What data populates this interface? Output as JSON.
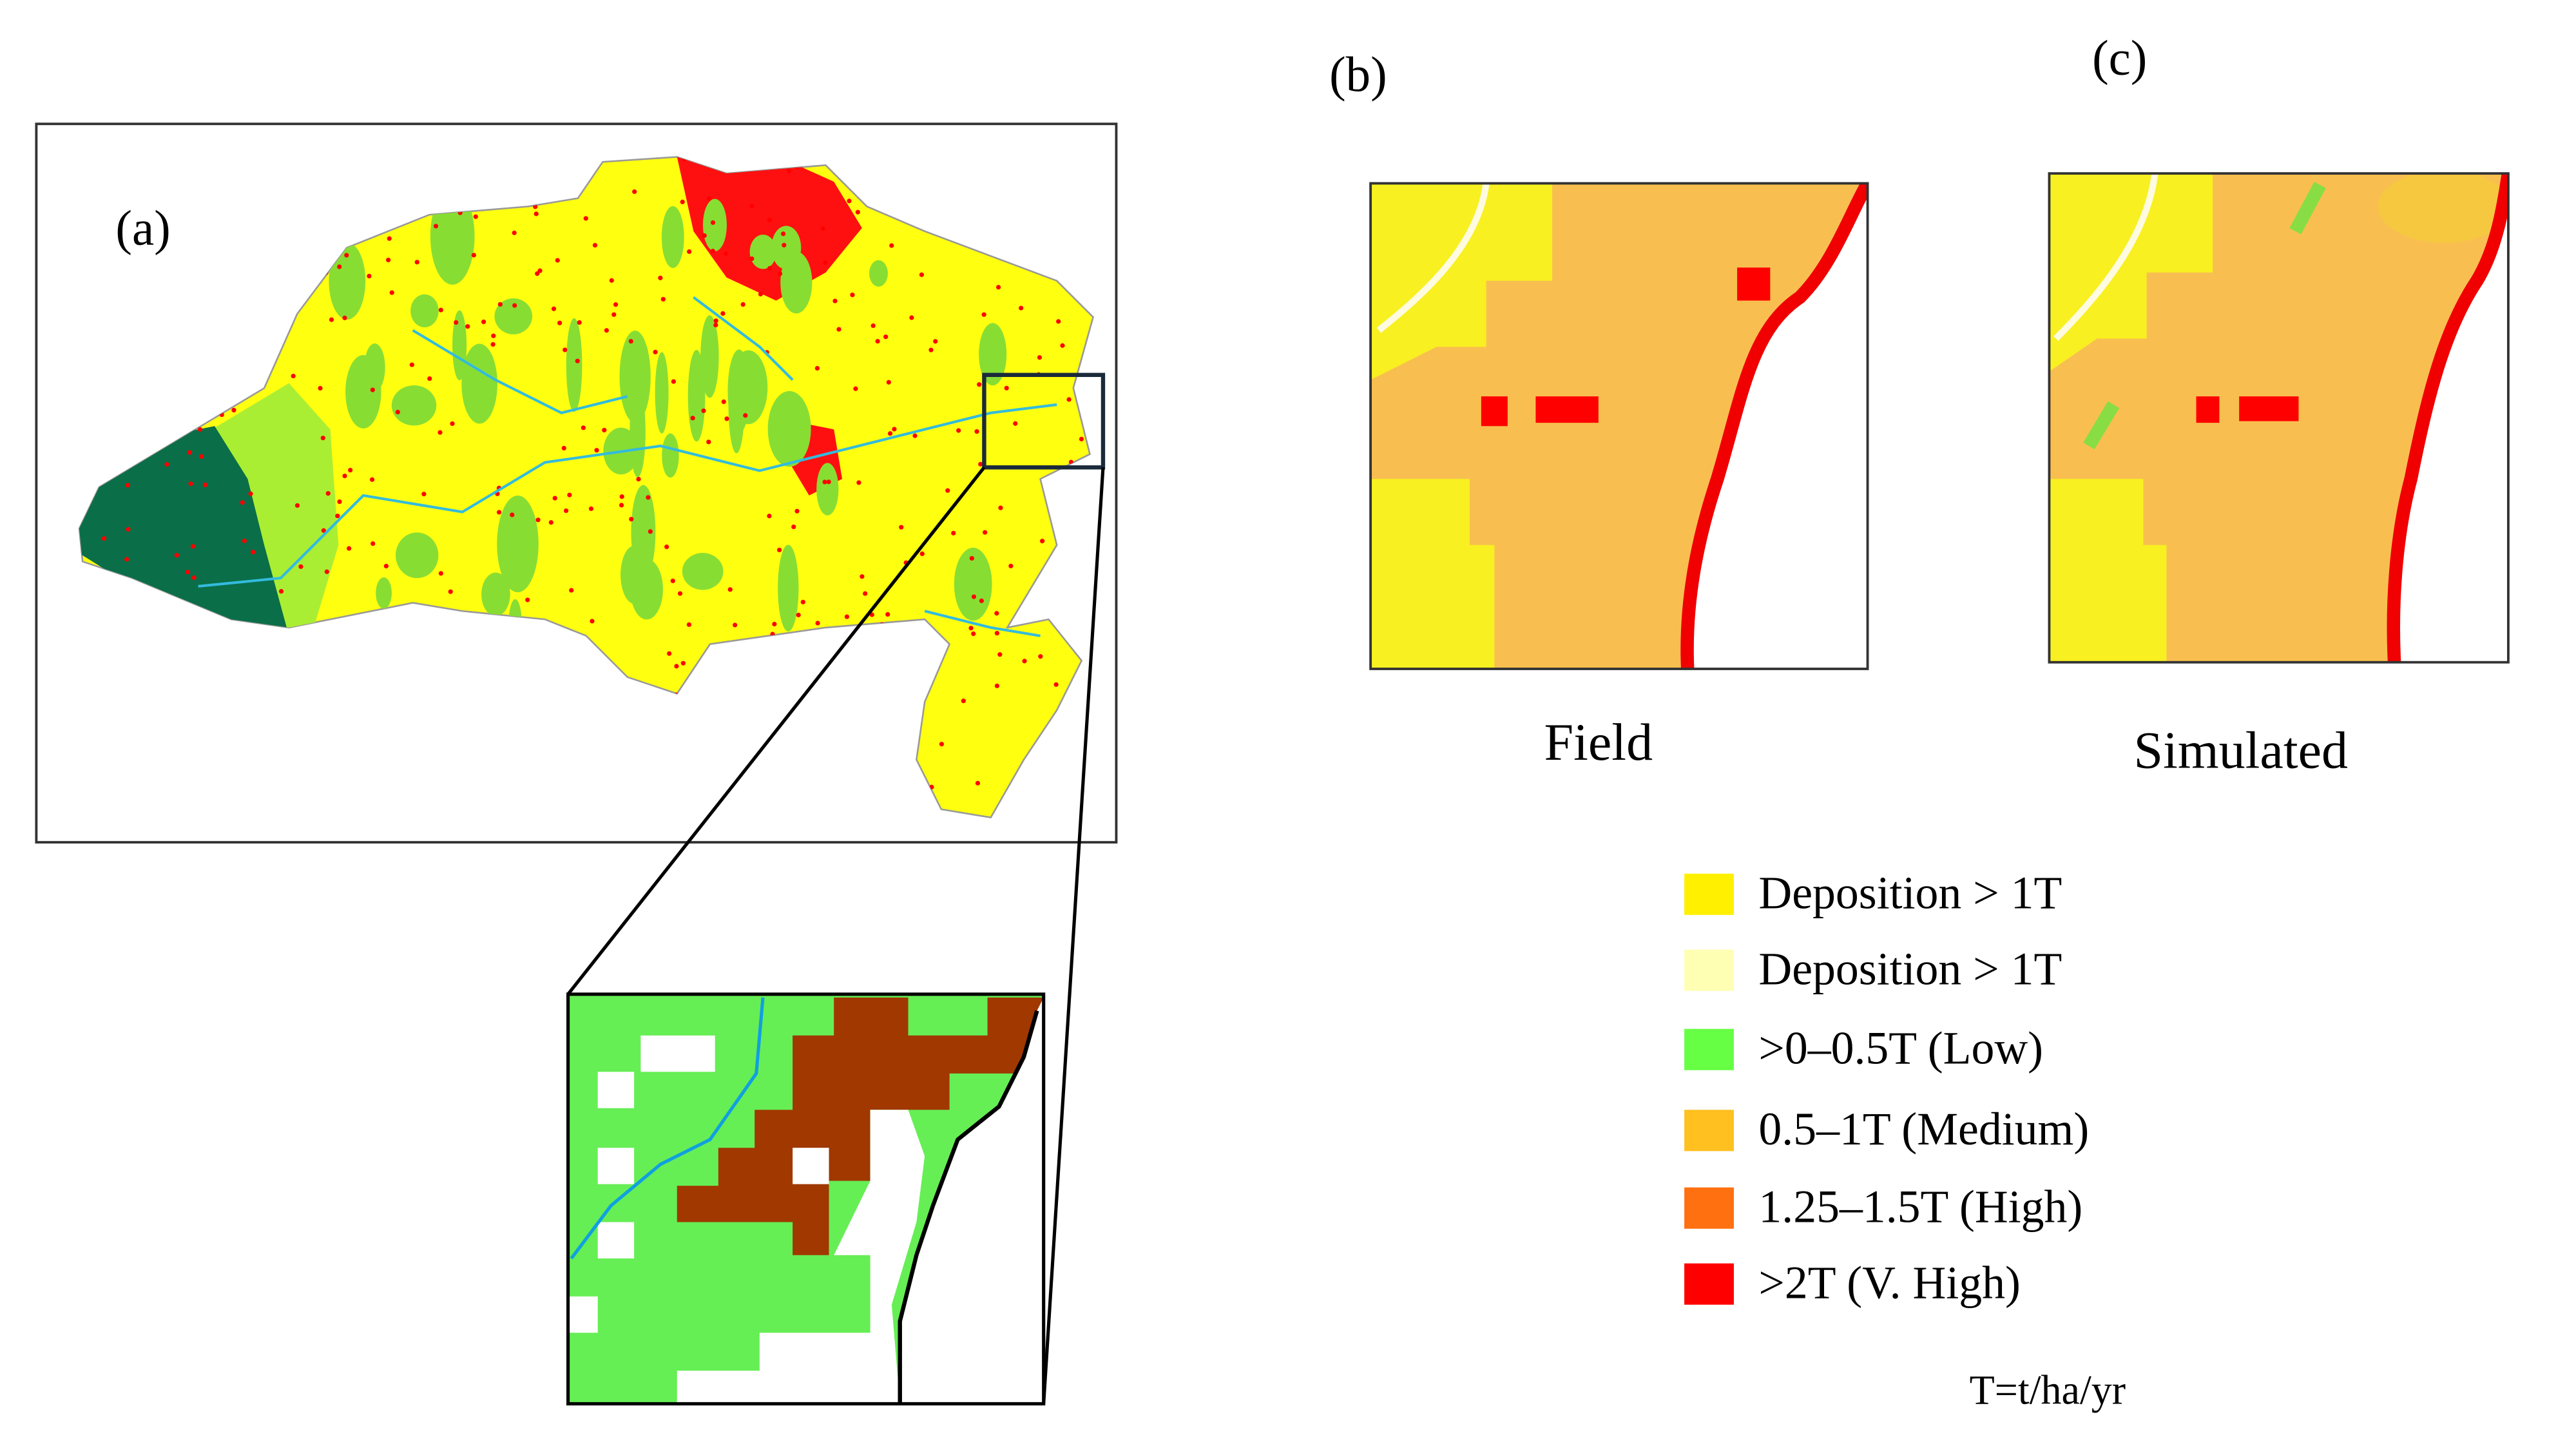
{
  "panels": {
    "a": {
      "label": "(a)"
    },
    "b": {
      "label": "(b)",
      "caption": "Field"
    },
    "c": {
      "label": "(c)",
      "caption": "Simulated"
    }
  },
  "legend": {
    "items": [
      {
        "label": "Deposition > 1T",
        "color": "#fff000"
      },
      {
        "label": "Deposition > 1T",
        "color": "#ffffb4"
      },
      {
        "label": ">0–0.5T (Low)",
        "color": "#66ff44"
      },
      {
        "label": "0.5–1T (Medium)",
        "color": "#ffc020"
      },
      {
        "label": "1.25–1.5T (High)",
        "color": "#ff7010"
      },
      {
        "label": ">2T (V. High)",
        "color": "#ff0000"
      }
    ],
    "note": "T=t/ha/yr"
  }
}
